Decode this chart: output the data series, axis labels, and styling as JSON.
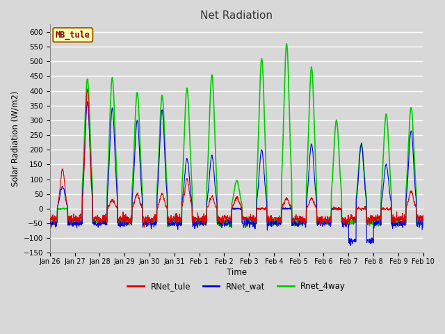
{
  "title": "Net Radiation",
  "xlabel": "Time",
  "ylabel": "Solar Radiation (W/m2)",
  "ylim": [
    -150,
    625
  ],
  "yticks": [
    -150,
    -100,
    -50,
    0,
    50,
    100,
    150,
    200,
    250,
    300,
    350,
    400,
    450,
    500,
    550,
    600
  ],
  "bg_color": "#d8d8d8",
  "plot_bg": "#d8d8d8",
  "grid_color": "white",
  "line_colors": {
    "RNet_tule": "#dd0000",
    "RNet_wat": "#0000dd",
    "Rnet_4way": "#00cc00"
  },
  "line_widths": {
    "RNet_tule": 0.8,
    "RNet_wat": 0.8,
    "Rnet_4way": 1.2
  },
  "station_label": "MB_tule",
  "station_label_color": "#880000",
  "station_label_bg": "#ffffbb",
  "station_border_color": "#aa6600",
  "tick_labels": [
    "Jan 26",
    "Jan 27",
    "Jan 28",
    "Jan 29",
    "Jan 30",
    "Jan 31",
    "Feb 1",
    "Feb 2",
    "Feb 3",
    "Feb 4",
    "Feb 5",
    "Feb 6",
    "Feb 7",
    "Feb 8",
    "Feb 9",
    "Feb 10"
  ],
  "legend_entries": [
    "RNet_tule",
    "RNet_wat",
    "Rnet_4way"
  ]
}
